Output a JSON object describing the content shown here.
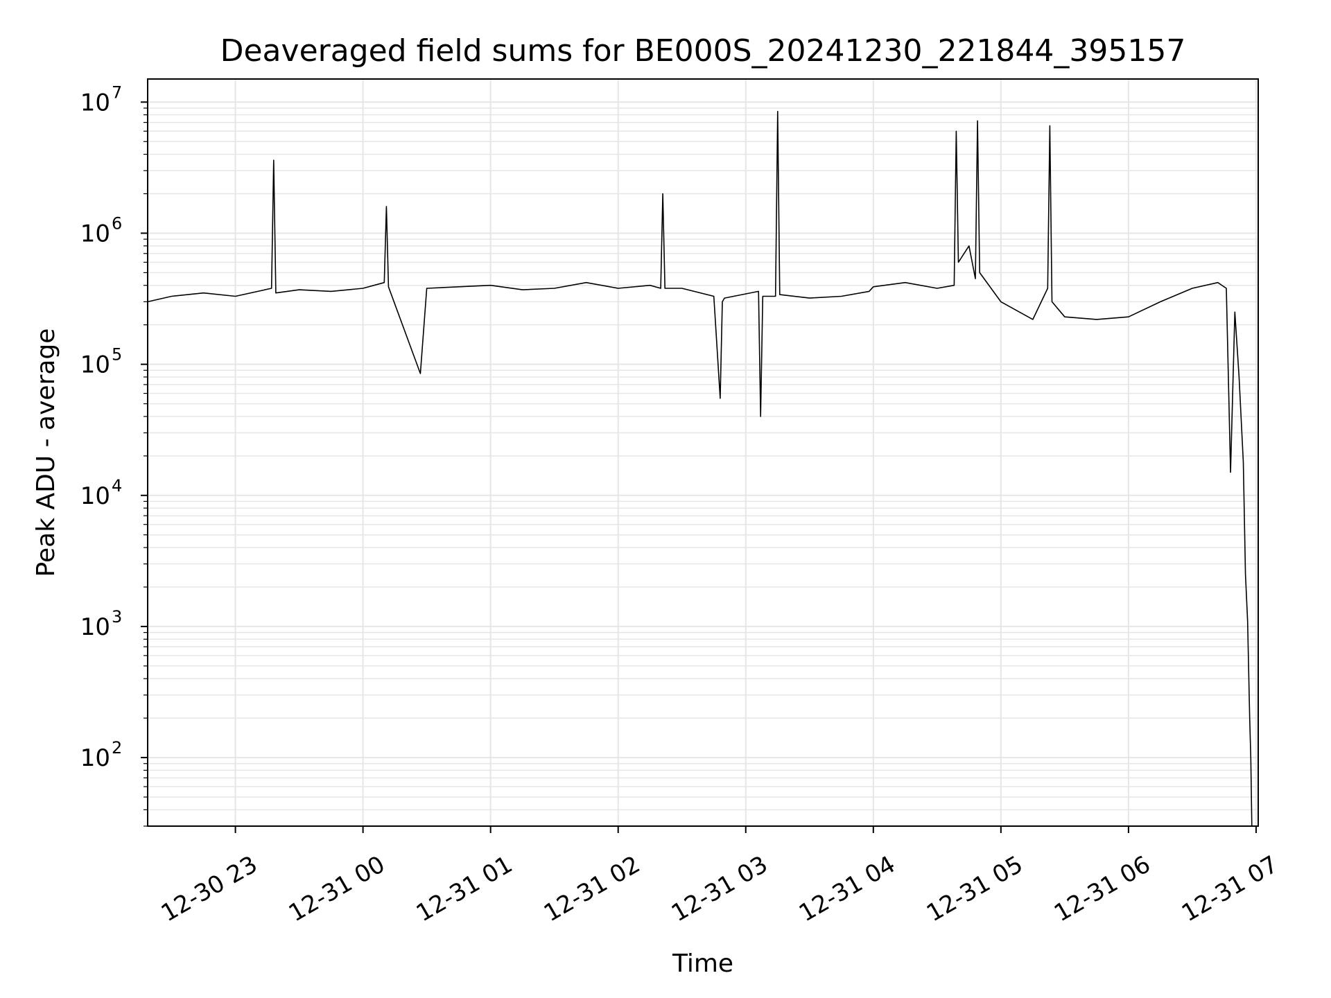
{
  "chart_data": {
    "type": "line",
    "title": "Deaveraged field sums for BE000S_20241230_221844_395157",
    "xlabel": "Time",
    "ylabel": "Peak ADU - average",
    "y_scale": "log",
    "ylim": [
      30,
      15000000
    ],
    "xlim": [
      "2024-12-30 22:18:44",
      "2024-12-31 07:01:00"
    ],
    "grid": true,
    "line_color": "#000000",
    "grid_color": "#e6e6e6",
    "x_ticks": [
      {
        "label": "12-30 23",
        "x": "2024-12-30 23:00"
      },
      {
        "label": "12-31 00",
        "x": "2024-12-31 00:00"
      },
      {
        "label": "12-31 01",
        "x": "2024-12-31 01:00"
      },
      {
        "label": "12-31 02",
        "x": "2024-12-31 02:00"
      },
      {
        "label": "12-31 03",
        "x": "2024-12-31 03:00"
      },
      {
        "label": "12-31 04",
        "x": "2024-12-31 04:00"
      },
      {
        "label": "12-31 05",
        "x": "2024-12-31 05:00"
      },
      {
        "label": "12-31 06",
        "x": "2024-12-31 06:00"
      },
      {
        "label": "12-31 07",
        "x": "2024-12-31 07:00"
      }
    ],
    "y_ticks": [
      {
        "base": "10",
        "exp": "2",
        "value": 100
      },
      {
        "base": "10",
        "exp": "3",
        "value": 1000
      },
      {
        "base": "10",
        "exp": "4",
        "value": 10000
      },
      {
        "base": "10",
        "exp": "5",
        "value": 100000
      },
      {
        "base": "10",
        "exp": "6",
        "value": 1000000
      },
      {
        "base": "10",
        "exp": "7",
        "value": 10000000
      }
    ],
    "series": [
      {
        "x": [
          "2024-12-30 22:18:44",
          "2024-12-30 22:30",
          "2024-12-30 22:45",
          "2024-12-30 23:00",
          "2024-12-30 23:17",
          "2024-12-30 23:18",
          "2024-12-30 23:19",
          "2024-12-30 23:30",
          "2024-12-30 23:45",
          "2024-12-31 00:00",
          "2024-12-31 00:10",
          "2024-12-31 00:11",
          "2024-12-31 00:12",
          "2024-12-31 00:27",
          "2024-12-31 00:30",
          "2024-12-31 00:45",
          "2024-12-31 01:00",
          "2024-12-31 01:15",
          "2024-12-31 01:30",
          "2024-12-31 01:45",
          "2024-12-31 02:00",
          "2024-12-31 02:15",
          "2024-12-31 02:20",
          "2024-12-31 02:21",
          "2024-12-31 02:22",
          "2024-12-31 02:30",
          "2024-12-31 02:45",
          "2024-12-31 02:48",
          "2024-12-31 02:49",
          "2024-12-31 02:50",
          "2024-12-31 03:06",
          "2024-12-31 03:07",
          "2024-12-31 03:08",
          "2024-12-31 03:14",
          "2024-12-31 03:15",
          "2024-12-31 03:16",
          "2024-12-31 03:30",
          "2024-12-31 03:45",
          "2024-12-31 03:58",
          "2024-12-31 04:00",
          "2024-12-31 04:15",
          "2024-12-31 04:30",
          "2024-12-31 04:38",
          "2024-12-31 04:39",
          "2024-12-31 04:40",
          "2024-12-31 04:45",
          "2024-12-31 04:48",
          "2024-12-31 04:49",
          "2024-12-31 04:50",
          "2024-12-31 05:00",
          "2024-12-31 05:15",
          "2024-12-31 05:22",
          "2024-12-31 05:23",
          "2024-12-31 05:24",
          "2024-12-31 05:30",
          "2024-12-31 05:45",
          "2024-12-31 06:00",
          "2024-12-31 06:15",
          "2024-12-31 06:30",
          "2024-12-31 06:42",
          "2024-12-31 06:46",
          "2024-12-31 06:48",
          "2024-12-31 06:50",
          "2024-12-31 06:52",
          "2024-12-31 06:54",
          "2024-12-31 06:55",
          "2024-12-31 06:56",
          "2024-12-31 06:57",
          "2024-12-31 06:57:30",
          "2024-12-31 06:58"
        ],
        "values": [
          300000,
          330000,
          350000,
          330000,
          380000,
          3600000,
          350000,
          370000,
          360000,
          380000,
          420000,
          1600000,
          390000,
          85000,
          380000,
          390000,
          400000,
          370000,
          380000,
          420000,
          380000,
          400000,
          380000,
          2000000,
          380000,
          380000,
          330000,
          55000,
          300000,
          320000,
          360000,
          40000,
          330000,
          330000,
          8500000,
          340000,
          320000,
          330000,
          360000,
          390000,
          420000,
          380000,
          400000,
          6000000,
          600000,
          800000,
          450000,
          7200000,
          500000,
          300000,
          220000,
          380000,
          6600000,
          300000,
          230000,
          220000,
          230000,
          300000,
          380000,
          420000,
          380000,
          15000,
          250000,
          80000,
          18000,
          2500,
          1100,
          200,
          100,
          30
        ]
      }
    ]
  }
}
